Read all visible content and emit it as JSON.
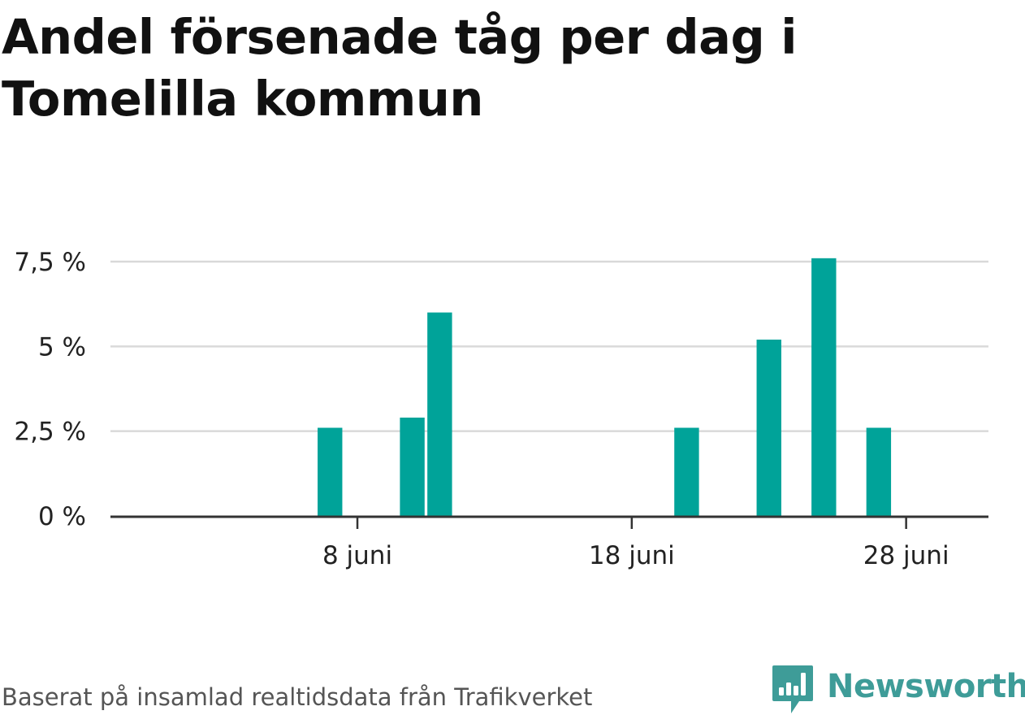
{
  "title": "Andel försenade tåg per dag i Tomelilla kommun",
  "footer": {
    "source": "Baserat på insamlad realtidsdata från Trafikverket",
    "brand": "Newsworthy",
    "brand_icon": "newsworthy-logo-icon"
  },
  "colors": {
    "bar": "#00a399",
    "grid": "#d9d9d9",
    "axis": "#333333",
    "brand": "#3e9c98"
  },
  "chart_data": {
    "type": "bar",
    "title": "Andel försenade tåg per dag i Tomelilla kommun",
    "xlabel": "",
    "ylabel": "",
    "unit": "%",
    "x_domain": [
      "2024-05-30",
      "2024-07-01"
    ],
    "ylim": [
      0,
      8.0
    ],
    "grid": true,
    "legend": "none",
    "categories": [
      "2024-05-30",
      "2024-05-31",
      "2024-06-01",
      "2024-06-02",
      "2024-06-03",
      "2024-06-04",
      "2024-06-05",
      "2024-06-06",
      "2024-06-07",
      "2024-06-08",
      "2024-06-09",
      "2024-06-10",
      "2024-06-11",
      "2024-06-12",
      "2024-06-13",
      "2024-06-14",
      "2024-06-15",
      "2024-06-16",
      "2024-06-17",
      "2024-06-18",
      "2024-06-19",
      "2024-06-20",
      "2024-06-21",
      "2024-06-22",
      "2024-06-23",
      "2024-06-24",
      "2024-06-25",
      "2024-06-26",
      "2024-06-27",
      "2024-06-28",
      "2024-06-29",
      "2024-06-30"
    ],
    "values": [
      0,
      0,
      0,
      0,
      0,
      0,
      0,
      0,
      2.6,
      0,
      0,
      2.9,
      6.0,
      0,
      0,
      0,
      0,
      0,
      0,
      0,
      0,
      2.6,
      0,
      0,
      5.2,
      0,
      7.6,
      0,
      2.6,
      0,
      0,
      0
    ],
    "y_ticks": [
      {
        "value": 0,
        "label": "0 %"
      },
      {
        "value": 2.5,
        "label": "2,5 %"
      },
      {
        "value": 5,
        "label": "5 %"
      },
      {
        "value": 7.5,
        "label": "7,5 %"
      }
    ],
    "x_ticks": [
      {
        "date": "2024-06-08",
        "label": "8 juni"
      },
      {
        "date": "2024-06-18",
        "label": "18 juni"
      },
      {
        "date": "2024-06-28",
        "label": "28 juni"
      }
    ]
  }
}
